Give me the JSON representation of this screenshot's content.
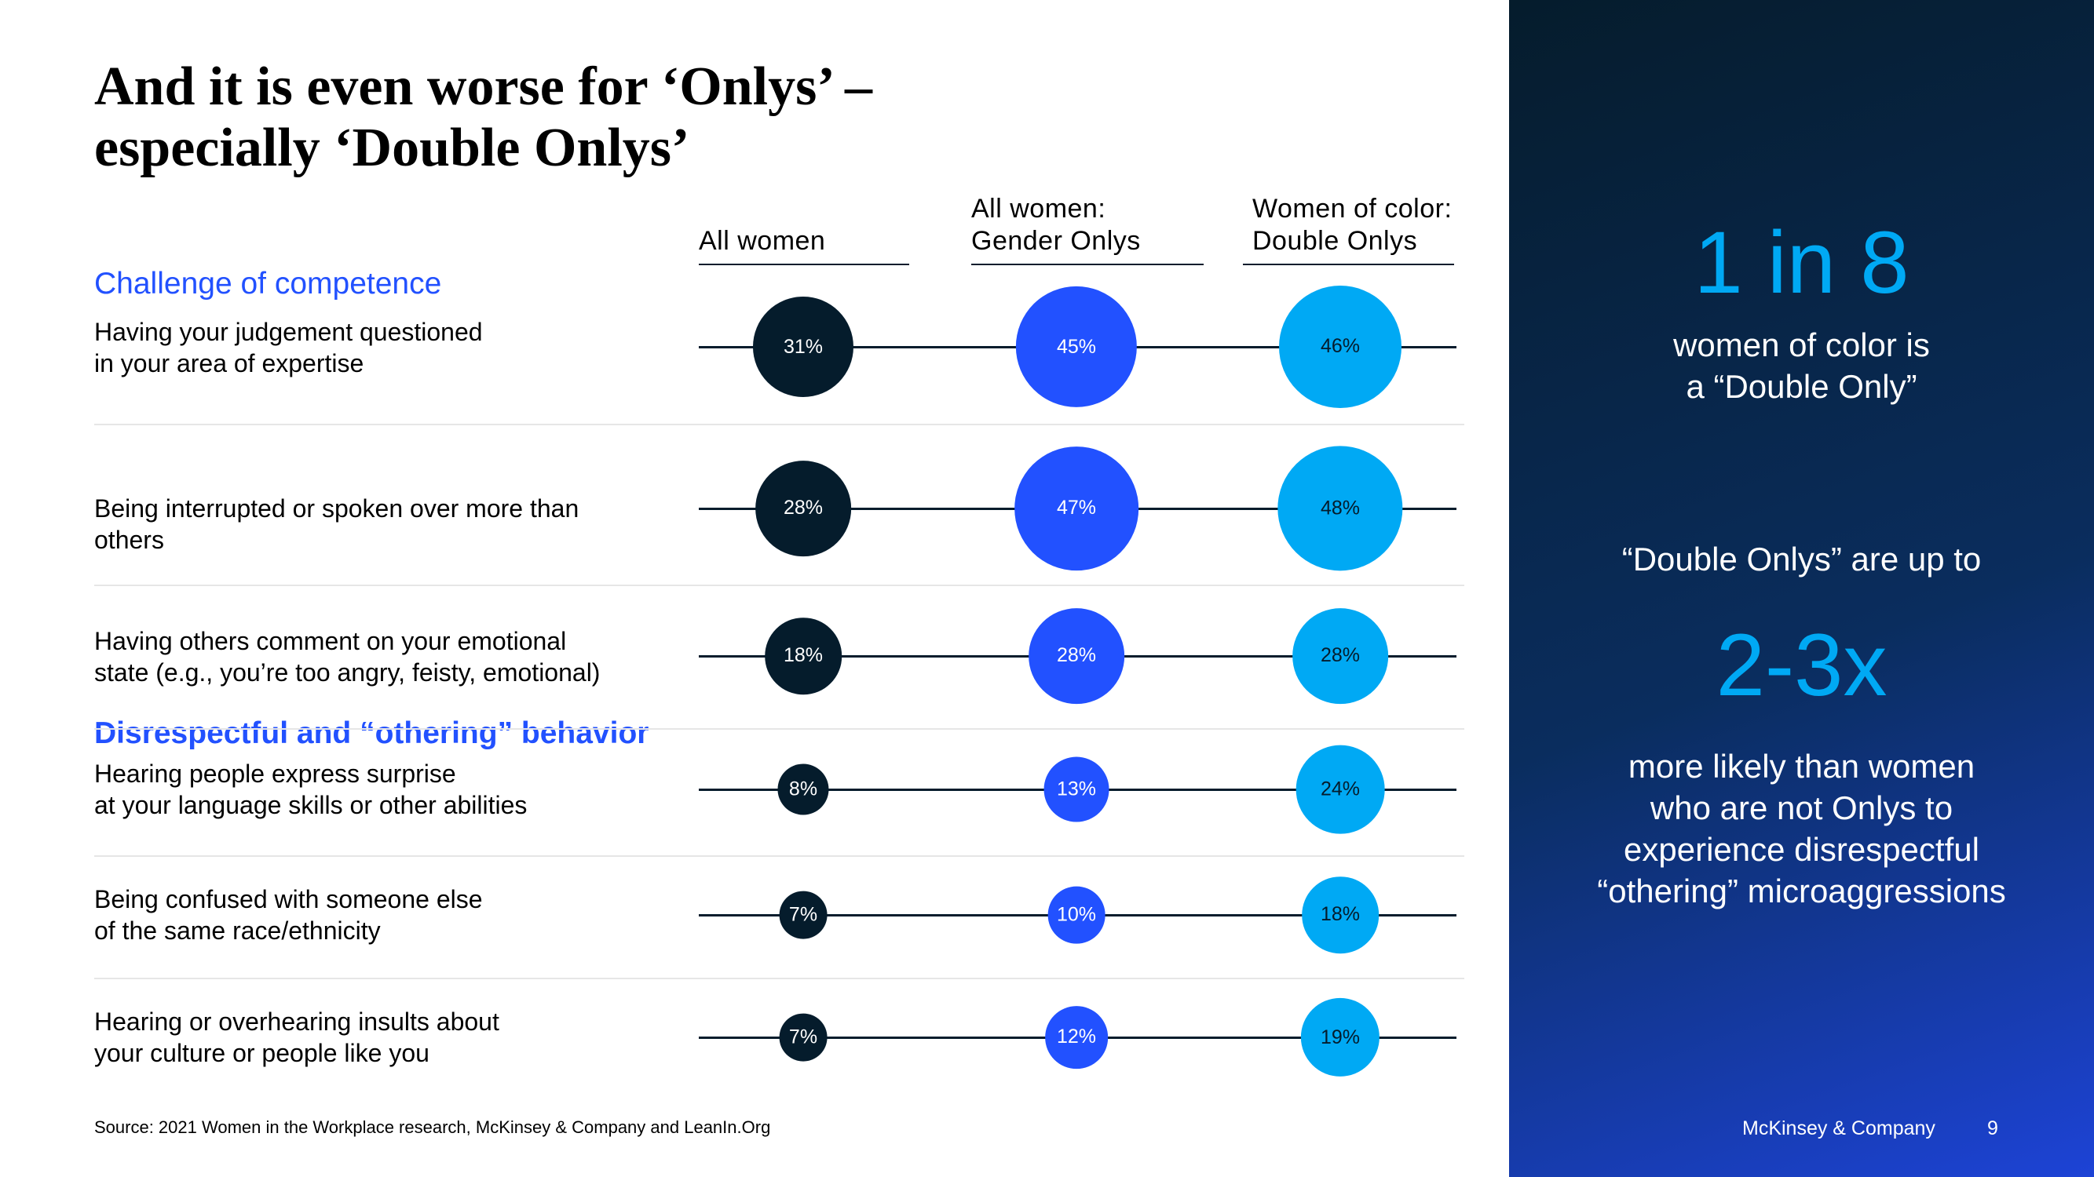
{
  "title": {
    "line1": "And it is even worse for ‘Onlys’ –",
    "line2": "especially ‘Double Onlys’"
  },
  "columns": [
    {
      "lines": [
        "All women"
      ]
    },
    {
      "lines": [
        "All women:",
        "Gender Onlys"
      ]
    },
    {
      "lines": [
        "Women of color:",
        "Double Onlys"
      ]
    }
  ],
  "sections": {
    "competence": "Challenge of competence",
    "othering": "Disrespectful and “othering” behavior"
  },
  "rows": [
    {
      "lines": [
        "Having your judgement questioned",
        "in your area of expertise"
      ]
    },
    {
      "lines": [
        "Being interrupted or spoken over more than",
        "others"
      ]
    },
    {
      "lines": [
        "Having others comment on your emotional",
        "state (e.g., you’re too angry, feisty, emotional)"
      ]
    },
    {
      "lines": [
        "Hearing people express surprise",
        "at your language skills or other abilities"
      ]
    },
    {
      "lines": [
        "Being confused with someone else",
        "of the same race/ethnicity"
      ]
    },
    {
      "lines": [
        "Hearing or overhearing insults about",
        "your culture or people like you"
      ]
    }
  ],
  "chart_data": {
    "type": "bubble",
    "categories": [
      "Having your judgement questioned in your area of expertise",
      "Being interrupted or spoken over more than others",
      "Having others comment on your emotional state (e.g., you’re too angry, feisty, emotional)",
      "Hearing people express surprise at your language skills or other abilities",
      "Being confused with someone else of the same race/ethnicity",
      "Hearing or overhearing insults about your culture or people like you"
    ],
    "series": [
      {
        "name": "All women",
        "color": "#051c2c",
        "values": [
          31,
          28,
          18,
          8,
          7,
          7
        ]
      },
      {
        "name": "All women: Gender Onlys",
        "color": "#2251ff",
        "values": [
          45,
          47,
          28,
          13,
          10,
          12
        ]
      },
      {
        "name": "Women of color: Double Onlys",
        "color": "#00a9f4",
        "values": [
          46,
          48,
          28,
          24,
          18,
          19
        ]
      }
    ],
    "unit": "%"
  },
  "source": "Source: 2021 Women in the Workplace research, McKinsey & Company and LeanIn.Org",
  "panel": {
    "stat1": "1 in 8",
    "stat1_text": [
      "women of color is",
      "a “Double Only”"
    ],
    "intro2": "“Double Onlys” are up to",
    "stat2": "2-3x",
    "stat2_text": [
      "more likely than women",
      "who are not Onlys to",
      "experience disrespectful",
      "“othering” microaggressions"
    ],
    "brand": "McKinsey & Company",
    "page": "9"
  },
  "colors": {
    "navy": "#051c2c",
    "electric_blue": "#2251ff",
    "cyan": "#00a9f4"
  }
}
